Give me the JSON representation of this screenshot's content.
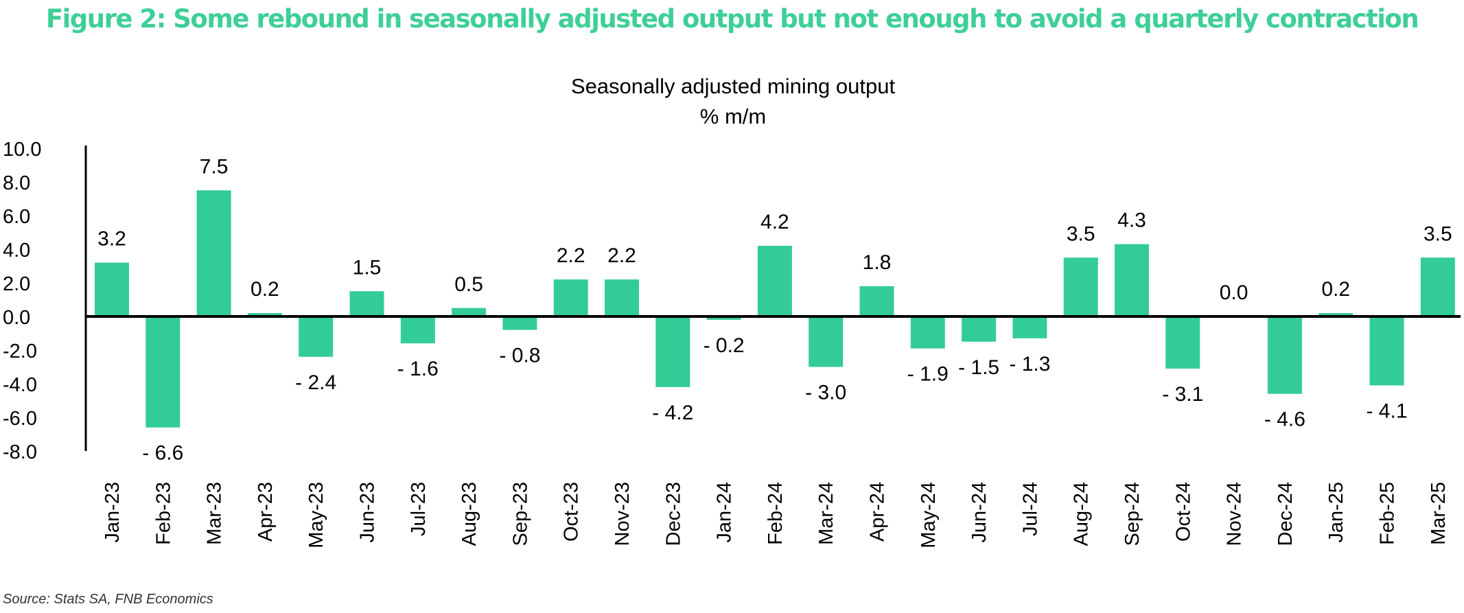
{
  "figure_title": "Figure 2: Some rebound in seasonally adjusted output but not enough to avoid a quarterly contraction",
  "source": "Source: Stats SA, FNB Economics",
  "colors": {
    "title": "#3ecf97",
    "bar": "#33cc96",
    "axis": "#000000",
    "text": "#000000"
  },
  "chart_data": {
    "type": "bar",
    "title": "Seasonally adjusted mining output",
    "subtitle": "% m/m",
    "xlabel": "",
    "ylabel": "",
    "ylim": [
      -8.0,
      10.0
    ],
    "yticks": [
      "10.0",
      "8.0",
      "6.0",
      "4.0",
      "2.0",
      "0.0",
      "-2.0",
      "-4.0",
      "-6.0",
      "-8.0"
    ],
    "categories": [
      "Jan-23",
      "Feb-23",
      "Mar-23",
      "Apr-23",
      "May-23",
      "Jun-23",
      "Jul-23",
      "Aug-23",
      "Sep-23",
      "Oct-23",
      "Nov-23",
      "Dec-23",
      "Jan-24",
      "Feb-24",
      "Mar-24",
      "Apr-24",
      "May-24",
      "Jun-24",
      "Jul-24",
      "Aug-24",
      "Sep-24",
      "Oct-24",
      "Nov-24",
      "Dec-24",
      "Jan-25",
      "Feb-25",
      "Mar-25"
    ],
    "values": [
      3.2,
      -6.6,
      7.5,
      0.2,
      -2.4,
      1.5,
      -1.6,
      0.5,
      -0.8,
      2.2,
      2.2,
      -4.2,
      -0.2,
      4.2,
      -3.0,
      1.8,
      -1.9,
      -1.5,
      -1.3,
      3.5,
      4.3,
      -3.1,
      0.0,
      -4.6,
      0.2,
      -4.1,
      3.5
    ],
    "data_labels": [
      "3.2",
      "- 6.6",
      "7.5",
      "0.2",
      "- 2.4",
      "1.5",
      "- 1.6",
      "0.5",
      "- 0.8",
      "2.2",
      "2.2",
      "- 4.2",
      "- 0.2",
      "4.2",
      "- 3.0",
      "1.8",
      "- 1.9",
      "- 1.5",
      "- 1.3",
      "3.5",
      "4.3",
      "- 3.1",
      "0.0",
      "- 4.6",
      "0.2",
      "- 4.1",
      "3.5"
    ],
    "grid": false,
    "legend": "none"
  }
}
